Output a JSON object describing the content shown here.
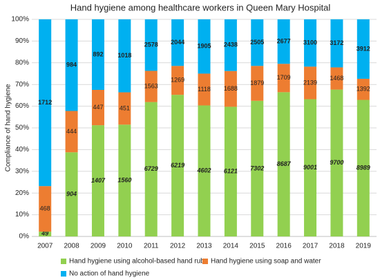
{
  "chart_data": {
    "type": "bar",
    "stacked": "percent",
    "title": "Hand hygiene among healthcare workers in Queen Mary Hospital",
    "y_label": "Compliance of hand hygiene",
    "categories": [
      "2007",
      "2008",
      "2009",
      "2010",
      "2011",
      "2012",
      "2013",
      "2014",
      "2015",
      "2016",
      "2017",
      "2018",
      "2019"
    ],
    "series": [
      {
        "name": "Hand hygiene using alcohol-based hand rub",
        "color": "#92d050",
        "values": [
          49,
          904,
          1407,
          1560,
          6729,
          6219,
          4602,
          6121,
          7302,
          8687,
          9001,
          9700,
          8989
        ]
      },
      {
        "name": "Hand hygiene using soap and water",
        "color": "#ed7d31",
        "values": [
          468,
          444,
          447,
          451,
          1563,
          1269,
          1118,
          1688,
          1879,
          1709,
          2139,
          1468,
          1392
        ]
      },
      {
        "name": "No action of hand hygiene",
        "color": "#00b0f0",
        "values": [
          1712,
          984,
          892,
          1018,
          2578,
          2044,
          1905,
          2438,
          2505,
          2677,
          3100,
          3172,
          3912
        ]
      }
    ],
    "ylim": [
      0,
      100
    ],
    "yticks": [
      {
        "value": 0,
        "label": "0%"
      },
      {
        "value": 10,
        "label": "10%"
      },
      {
        "value": 20,
        "label": "20%"
      },
      {
        "value": 30,
        "label": "30%"
      },
      {
        "value": 40,
        "label": "40%"
      },
      {
        "value": 50,
        "label": "50%"
      },
      {
        "value": 60,
        "label": "60%"
      },
      {
        "value": 70,
        "label": "70%"
      },
      {
        "value": 80,
        "label": "80%"
      },
      {
        "value": 90,
        "label": "90%"
      },
      {
        "value": 100,
        "label": "100%"
      }
    ],
    "grid": true,
    "legend": "bottom"
  }
}
